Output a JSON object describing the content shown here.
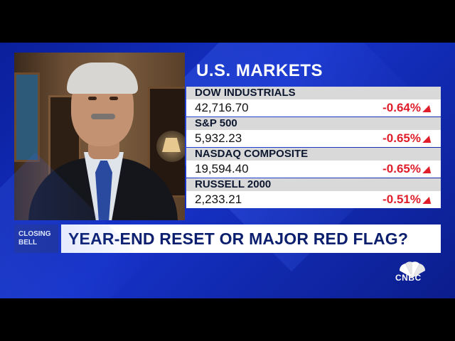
{
  "markets": {
    "title": "U.S. MARKETS",
    "rows": [
      {
        "name": "DOW INDUSTRIALS",
        "price": "42,716.70",
        "change": "-0.64%"
      },
      {
        "name": "S&P 500",
        "price": "5,932.23",
        "change": "-0.65%"
      },
      {
        "name": "NASDAQ COMPOSITE",
        "price": "19,594.40",
        "change": "-0.65%"
      },
      {
        "name": "RUSSELL 2000",
        "price": "2,233.21",
        "change": "-0.51%"
      }
    ],
    "down_color": "#e01d2a"
  },
  "show": {
    "label_line1": "CLOSING",
    "label_line2": "BELL"
  },
  "headline": "YEAR-END RESET OR MAJOR RED FLAG?",
  "network": {
    "logo_icon": "peacock-icon",
    "name": "CNBC"
  }
}
